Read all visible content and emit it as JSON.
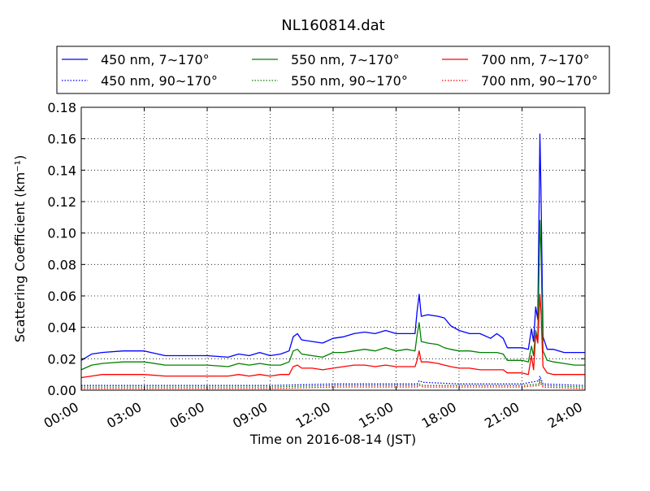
{
  "chart_data": {
    "type": "line",
    "title": "NL160814.dat",
    "xlabel": "Time on 2016-08-14 (JST)",
    "ylabel": "Scattering Coefficient (km⁻¹)",
    "x_unit": "hour of day (JST)",
    "xlim": [
      0,
      24
    ],
    "ylim": [
      0,
      0.18
    ],
    "x_ticks": [
      0,
      3,
      6,
      9,
      12,
      15,
      18,
      21,
      24
    ],
    "x_tick_labels": [
      "00:00",
      "03:00",
      "06:00",
      "09:00",
      "12:00",
      "15:00",
      "18:00",
      "21:00",
      "24:00"
    ],
    "y_ticks": [
      0,
      0.02,
      0.04,
      0.06,
      0.08,
      0.1,
      0.12,
      0.14,
      0.16,
      0.18
    ],
    "y_tick_labels": [
      "0.00",
      "0.02",
      "0.04",
      "0.06",
      "0.08",
      "0.10",
      "0.12",
      "0.14",
      "0.16",
      "0.18"
    ],
    "grid": true,
    "legend_position": "top (above plot), 3 columns",
    "series": [
      {
        "name": "450 nm, 7∼170°",
        "color": "#0000ff",
        "style": "solid",
        "x": [
          0,
          0.5,
          1,
          2,
          3,
          4,
          5,
          6,
          7,
          7.5,
          8,
          8.5,
          9,
          9.5,
          9.9,
          10.1,
          10.3,
          10.5,
          11,
          11.5,
          12,
          12.5,
          13,
          13.5,
          14,
          14.5,
          15,
          15.5,
          15.9,
          16.0,
          16.1,
          16.2,
          16.5,
          17,
          17.3,
          17.6,
          18,
          18.5,
          19,
          19.5,
          19.8,
          20.1,
          20.3,
          20.5,
          21,
          21.3,
          21.45,
          21.55,
          21.65,
          21.75,
          21.85,
          21.9,
          22.0,
          22.2,
          22.5,
          23,
          23.5,
          24
        ],
        "y": [
          0.019,
          0.023,
          0.024,
          0.025,
          0.025,
          0.022,
          0.022,
          0.022,
          0.021,
          0.023,
          0.022,
          0.024,
          0.022,
          0.023,
          0.025,
          0.034,
          0.036,
          0.032,
          0.031,
          0.03,
          0.033,
          0.034,
          0.036,
          0.037,
          0.036,
          0.038,
          0.036,
          0.036,
          0.036,
          0.05,
          0.061,
          0.047,
          0.048,
          0.047,
          0.046,
          0.041,
          0.038,
          0.036,
          0.036,
          0.033,
          0.036,
          0.033,
          0.027,
          0.027,
          0.027,
          0.026,
          0.039,
          0.031,
          0.053,
          0.045,
          0.163,
          0.127,
          0.034,
          0.026,
          0.026,
          0.024,
          0.024,
          0.024
        ]
      },
      {
        "name": "450 nm, 90∼170°",
        "color": "#0000ff",
        "style": "dotted",
        "x": [
          0,
          3,
          6,
          9,
          12,
          15,
          16.0,
          16.1,
          16.3,
          18,
          21,
          21.8,
          21.85,
          22.0,
          24
        ],
        "y": [
          0.003,
          0.003,
          0.003,
          0.003,
          0.004,
          0.004,
          0.004,
          0.006,
          0.005,
          0.004,
          0.004,
          0.006,
          0.009,
          0.004,
          0.003
        ]
      },
      {
        "name": "550 nm, 7∼170°",
        "color": "#008000",
        "style": "solid",
        "x": [
          0,
          0.5,
          1,
          2,
          3,
          4,
          5,
          6,
          7,
          7.5,
          8,
          8.5,
          9,
          9.5,
          9.9,
          10.1,
          10.3,
          10.5,
          11,
          11.5,
          12,
          12.5,
          13,
          13.5,
          14,
          14.5,
          15,
          15.5,
          15.9,
          16.0,
          16.1,
          16.2,
          16.5,
          17,
          17.3,
          17.6,
          18,
          18.5,
          19,
          19.5,
          19.8,
          20.1,
          20.3,
          20.5,
          21,
          21.3,
          21.45,
          21.55,
          21.65,
          21.75,
          21.85,
          21.9,
          22.0,
          22.2,
          22.5,
          23,
          23.5,
          24
        ],
        "y": [
          0.013,
          0.016,
          0.017,
          0.018,
          0.018,
          0.016,
          0.016,
          0.016,
          0.015,
          0.017,
          0.016,
          0.017,
          0.016,
          0.016,
          0.018,
          0.025,
          0.026,
          0.023,
          0.022,
          0.021,
          0.024,
          0.024,
          0.025,
          0.026,
          0.025,
          0.027,
          0.025,
          0.026,
          0.025,
          0.035,
          0.043,
          0.031,
          0.03,
          0.029,
          0.027,
          0.026,
          0.025,
          0.025,
          0.024,
          0.024,
          0.024,
          0.023,
          0.019,
          0.019,
          0.019,
          0.018,
          0.028,
          0.022,
          0.038,
          0.032,
          0.108,
          0.09,
          0.025,
          0.019,
          0.018,
          0.017,
          0.016,
          0.016
        ]
      },
      {
        "name": "550 nm, 90∼170°",
        "color": "#008000",
        "style": "dotted",
        "x": [
          0,
          3,
          6,
          9,
          12,
          15,
          16.0,
          16.1,
          16.3,
          18,
          21,
          21.8,
          21.85,
          22.0,
          24
        ],
        "y": [
          0.002,
          0.002,
          0.002,
          0.002,
          0.003,
          0.003,
          0.003,
          0.004,
          0.003,
          0.003,
          0.003,
          0.004,
          0.007,
          0.003,
          0.002
        ]
      },
      {
        "name": "700 nm, 7∼170°",
        "color": "#ff0000",
        "style": "solid",
        "x": [
          0,
          0.5,
          1,
          2,
          3,
          4,
          5,
          6,
          7,
          7.5,
          8,
          8.5,
          9,
          9.5,
          9.9,
          10.1,
          10.3,
          10.5,
          11,
          11.5,
          12,
          12.5,
          13,
          13.5,
          14,
          14.5,
          15,
          15.5,
          15.9,
          16.0,
          16.1,
          16.2,
          16.5,
          17,
          17.3,
          17.6,
          18,
          18.5,
          19,
          19.5,
          19.8,
          20.1,
          20.3,
          20.5,
          21,
          21.3,
          21.45,
          21.55,
          21.65,
          21.75,
          21.85,
          21.9,
          22.0,
          22.2,
          22.5,
          23,
          23.5,
          24
        ],
        "y": [
          0.008,
          0.009,
          0.01,
          0.01,
          0.01,
          0.009,
          0.009,
          0.009,
          0.009,
          0.01,
          0.009,
          0.01,
          0.009,
          0.01,
          0.01,
          0.015,
          0.016,
          0.014,
          0.014,
          0.013,
          0.014,
          0.015,
          0.016,
          0.016,
          0.015,
          0.016,
          0.015,
          0.015,
          0.015,
          0.019,
          0.025,
          0.018,
          0.018,
          0.017,
          0.016,
          0.015,
          0.014,
          0.014,
          0.013,
          0.013,
          0.013,
          0.013,
          0.011,
          0.011,
          0.011,
          0.01,
          0.022,
          0.013,
          0.036,
          0.03,
          0.061,
          0.05,
          0.015,
          0.011,
          0.01,
          0.01,
          0.01,
          0.01
        ]
      },
      {
        "name": "700 nm, 90∼170°",
        "color": "#ff0000",
        "style": "dotted",
        "x": [
          0,
          3,
          6,
          9,
          12,
          15,
          16.0,
          16.1,
          16.3,
          18,
          21,
          21.8,
          21.85,
          22.0,
          24
        ],
        "y": [
          0.001,
          0.001,
          0.001,
          0.001,
          0.002,
          0.002,
          0.002,
          0.003,
          0.002,
          0.002,
          0.002,
          0.003,
          0.005,
          0.002,
          0.001
        ]
      }
    ]
  }
}
